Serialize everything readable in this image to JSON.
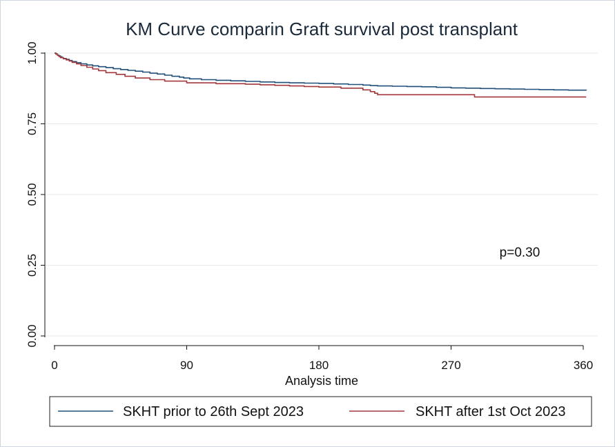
{
  "chart_data": {
    "type": "line",
    "title": "KM Curve comparin Graft survival post transplant",
    "xlabel": "Analysis time",
    "ylabel": "",
    "xlim": [
      0,
      365
    ],
    "ylim": [
      0,
      1
    ],
    "x_ticks": [
      0,
      90,
      180,
      270,
      360
    ],
    "x_tick_labels": [
      "0",
      "90",
      "180",
      "270",
      "360"
    ],
    "y_ticks": [
      0,
      0.25,
      0.5,
      0.75,
      1
    ],
    "y_tick_labels": [
      "0.00",
      "0.25",
      "0.50",
      "0.75",
      "1.00"
    ],
    "grid": true,
    "annotation": "p=0.30",
    "legend_position": "bottom",
    "series": [
      {
        "name": "SKHT prior to 26th Sept 2023",
        "color": "#1f4e79",
        "step": true,
        "x": [
          0,
          1,
          2,
          3,
          4,
          5,
          6,
          8,
          10,
          12,
          15,
          18,
          22,
          26,
          30,
          35,
          40,
          45,
          50,
          55,
          60,
          65,
          70,
          75,
          80,
          85,
          88,
          92,
          100,
          110,
          120,
          130,
          140,
          150,
          160,
          170,
          180,
          190,
          200,
          210,
          215,
          220,
          230,
          240,
          250,
          260,
          270,
          280,
          290,
          300,
          310,
          320,
          330,
          340,
          350,
          362
        ],
        "y": [
          1.0,
          0.997,
          0.993,
          0.99,
          0.987,
          0.984,
          0.981,
          0.978,
          0.974,
          0.97,
          0.966,
          0.962,
          0.958,
          0.955,
          0.952,
          0.949,
          0.945,
          0.942,
          0.939,
          0.936,
          0.933,
          0.929,
          0.926,
          0.922,
          0.918,
          0.915,
          0.912,
          0.909,
          0.906,
          0.904,
          0.902,
          0.9,
          0.898,
          0.896,
          0.895,
          0.894,
          0.893,
          0.891,
          0.889,
          0.887,
          0.885,
          0.884,
          0.883,
          0.882,
          0.881,
          0.879,
          0.877,
          0.876,
          0.875,
          0.874,
          0.873,
          0.872,
          0.871,
          0.87,
          0.869,
          0.868
        ]
      },
      {
        "name": "SKHT after 1st Oct 2023",
        "color": "#a2363a",
        "step": true,
        "x": [
          0,
          1,
          2,
          3,
          4,
          6,
          8,
          10,
          12,
          15,
          18,
          22,
          26,
          30,
          35,
          42,
          48,
          55,
          65,
          75,
          90,
          110,
          130,
          140,
          150,
          160,
          170,
          180,
          195,
          210,
          215,
          218,
          220,
          240,
          260,
          286,
          300,
          330,
          362
        ],
        "y": [
          1.0,
          0.996,
          0.992,
          0.988,
          0.984,
          0.98,
          0.976,
          0.972,
          0.967,
          0.962,
          0.956,
          0.95,
          0.944,
          0.938,
          0.931,
          0.925,
          0.918,
          0.912,
          0.906,
          0.901,
          0.895,
          0.892,
          0.89,
          0.888,
          0.886,
          0.884,
          0.882,
          0.88,
          0.876,
          0.87,
          0.864,
          0.858,
          0.853,
          0.853,
          0.853,
          0.845,
          0.845,
          0.845,
          0.845
        ]
      }
    ]
  }
}
